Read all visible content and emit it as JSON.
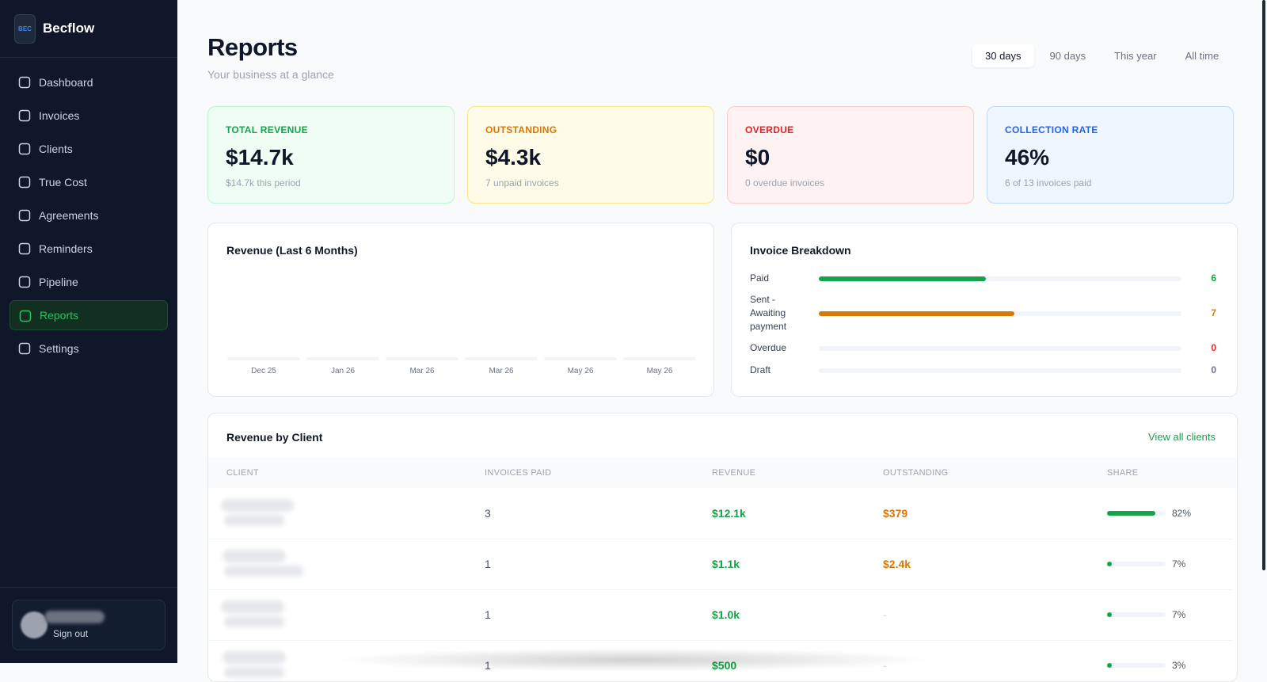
{
  "sidebar": {
    "badge": "BEC",
    "brand": "Becflow",
    "nav": [
      "Dashboard",
      "Invoices",
      "Clients",
      "True Cost",
      "Agreements",
      "Reminders",
      "Pipeline",
      "Reports",
      "Settings"
    ],
    "sign_out": "Sign out"
  },
  "header": {
    "title": "Reports",
    "subtitle": "Your business at a glance",
    "ranges": [
      "30 days",
      "90 days",
      "This year",
      "All time"
    ]
  },
  "stats": [
    {
      "label": "TOTAL REVENUE",
      "value": "$14.7k",
      "note": "$14.7k this period"
    },
    {
      "label": "OUTSTANDING",
      "value": "$4.3k",
      "note": "7 unpaid invoices"
    },
    {
      "label": "OVERDUE",
      "value": "$0",
      "note": "0 overdue invoices"
    },
    {
      "label": "COLLECTION RATE",
      "value": "46%",
      "note": "6 of 13 invoices paid"
    }
  ],
  "revenue_chart": {
    "title": "Revenue (Last 6 Months)",
    "months": [
      "Dec 25",
      "Jan 26",
      "Mar 26",
      "Mar 26",
      "May 26",
      "May 26"
    ]
  },
  "breakdown": {
    "title": "Invoice Breakdown",
    "rows": [
      {
        "label": "Paid",
        "count": 6,
        "color": "#16a34a"
      },
      {
        "label": "Sent - Awaiting payment",
        "count": 7,
        "color": "#d97706"
      },
      {
        "label": "Overdue",
        "count": 0,
        "color": "#dc2626"
      },
      {
        "label": "Draft",
        "count": 0,
        "color": "#6b7280"
      }
    ]
  },
  "table": {
    "title": "Revenue by Client",
    "link": "View all clients",
    "columns": [
      "CLIENT",
      "INVOICES PAID",
      "REVENUE",
      "OUTSTANDING",
      "SHARE"
    ],
    "rows": [
      {
        "invoices_paid": 3,
        "revenue": "$12.1k",
        "outstanding": "$379",
        "share": {
          "value": 82,
          "label": "82%"
        }
      },
      {
        "invoices_paid": 1,
        "revenue": "$1.1k",
        "outstanding": "$2.4k",
        "share": {
          "value": 7,
          "label": "7%"
        }
      },
      {
        "invoices_paid": 1,
        "revenue": "$1.0k",
        "outstanding": "-",
        "share": {
          "value": 7,
          "label": "7%"
        }
      },
      {
        "invoices_paid": 1,
        "revenue": "$500",
        "outstanding": "-",
        "share": {
          "value": 3,
          "label": "3%"
        }
      }
    ]
  }
}
